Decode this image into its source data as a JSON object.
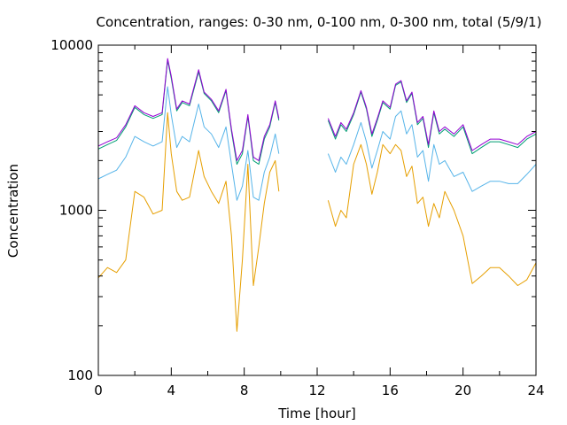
{
  "chart_data": {
    "type": "line",
    "title": "Concentration, ranges: 0-30 nm, 0-100 nm, 0-300 nm, total (5/9/1)",
    "xlabel": "Time [hour]",
    "ylabel": "Concentration",
    "xlim": [
      0,
      24
    ],
    "ylim": [
      100,
      10000
    ],
    "yscale": "log",
    "grid": false,
    "legend": "none",
    "x_ticks": [
      0,
      4,
      8,
      12,
      16,
      20,
      24
    ],
    "x_tick_labels": [
      "0",
      "4",
      "8",
      "12",
      "16",
      "20",
      "24"
    ],
    "y_ticks": [
      100,
      1000,
      10000
    ],
    "y_tick_labels": [
      "100",
      "1000",
      "10000"
    ],
    "series": [
      {
        "color": "#9400d3",
        "x": [
          0,
          0.5,
          1,
          1.5,
          2,
          2.5,
          3,
          3.5,
          3.8,
          4,
          4.3,
          4.6,
          5,
          5.5,
          5.8,
          6.2,
          6.6,
          7,
          7.3,
          7.6,
          7.9,
          8.2,
          8.5,
          8.8,
          9.1,
          9.4,
          9.7,
          9.9,
          null,
          12.6,
          13,
          13.3,
          13.6,
          14,
          14.4,
          14.7,
          15,
          15.3,
          15.6,
          16,
          16.3,
          16.6,
          16.9,
          17.2,
          17.5,
          17.8,
          18.1,
          18.4,
          18.7,
          19,
          19.5,
          20,
          20.5,
          21,
          21.5,
          22,
          22.5,
          23,
          23.5,
          24
        ],
        "y": [
          2450,
          2600,
          2750,
          3300,
          4300,
          3900,
          3700,
          3900,
          8300,
          6500,
          4100,
          4600,
          4400,
          7100,
          5200,
          4700,
          4000,
          5400,
          3100,
          2000,
          2300,
          3800,
          2100,
          2000,
          2800,
          3300,
          4600,
          3600,
          null,
          3600,
          2800,
          3400,
          3100,
          3900,
          5300,
          4200,
          2900,
          3600,
          4600,
          4200,
          5800,
          6100,
          4600,
          5200,
          3400,
          3700,
          2500,
          4000,
          3000,
          3200,
          2900,
          3300,
          2300,
          2500,
          2700,
          2700,
          2600,
          2500,
          2800,
          3000
        ]
      },
      {
        "color": "#009e73",
        "x": [
          0,
          0.5,
          1,
          1.5,
          2,
          2.5,
          3,
          3.5,
          3.8,
          4,
          4.3,
          4.6,
          5,
          5.5,
          5.8,
          6.2,
          6.6,
          7,
          7.3,
          7.6,
          7.9,
          8.2,
          8.5,
          8.8,
          9.1,
          9.4,
          9.7,
          9.9,
          null,
          12.6,
          13,
          13.3,
          13.6,
          14,
          14.4,
          14.7,
          15,
          15.3,
          15.6,
          16,
          16.3,
          16.6,
          16.9,
          17.2,
          17.5,
          17.8,
          18.1,
          18.4,
          18.7,
          19,
          19.5,
          20,
          20.5,
          21,
          21.5,
          22,
          22.5,
          23,
          23.5,
          24
        ],
        "y": [
          2350,
          2500,
          2650,
          3200,
          4200,
          3800,
          3600,
          3800,
          8100,
          6300,
          4000,
          4500,
          4300,
          6900,
          5100,
          4600,
          3900,
          5300,
          3000,
          1900,
          2200,
          3700,
          2000,
          1900,
          2700,
          3200,
          4500,
          3500,
          null,
          3500,
          2700,
          3300,
          3000,
          3800,
          5200,
          4100,
          2800,
          3500,
          4500,
          4100,
          5700,
          6000,
          4500,
          5100,
          3300,
          3600,
          2400,
          3900,
          2900,
          3100,
          2800,
          3200,
          2200,
          2400,
          2600,
          2600,
          2500,
          2400,
          2700,
          2900
        ]
      },
      {
        "color": "#56b4e9",
        "x": [
          0,
          0.5,
          1,
          1.5,
          2,
          2.5,
          3,
          3.5,
          3.8,
          4,
          4.3,
          4.6,
          5,
          5.5,
          5.8,
          6.2,
          6.6,
          7,
          7.3,
          7.6,
          7.9,
          8.2,
          8.5,
          8.8,
          9.1,
          9.4,
          9.7,
          9.9,
          null,
          12.6,
          13,
          13.3,
          13.6,
          14,
          14.4,
          14.7,
          15,
          15.3,
          15.6,
          16,
          16.3,
          16.6,
          16.9,
          17.2,
          17.5,
          17.8,
          18.1,
          18.4,
          18.7,
          19,
          19.5,
          20,
          20.5,
          21,
          21.5,
          22,
          22.5,
          23,
          23.5,
          24
        ],
        "y": [
          1550,
          1650,
          1750,
          2100,
          2800,
          2600,
          2450,
          2600,
          5600,
          3800,
          2400,
          2800,
          2600,
          4400,
          3200,
          2900,
          2400,
          3200,
          1900,
          1150,
          1400,
          2300,
          1200,
          1150,
          1700,
          2100,
          2900,
          2200,
          null,
          2200,
          1700,
          2100,
          1900,
          2500,
          3400,
          2600,
          1800,
          2300,
          3000,
          2700,
          3700,
          4000,
          2900,
          3300,
          2100,
          2300,
          1500,
          2500,
          1900,
          2000,
          1600,
          1700,
          1300,
          1400,
          1500,
          1500,
          1450,
          1450,
          1650,
          1900
        ]
      },
      {
        "color": "#e69f00",
        "x": [
          0,
          0.5,
          1,
          1.5,
          2,
          2.5,
          3,
          3.5,
          3.8,
          4,
          4.3,
          4.6,
          5,
          5.5,
          5.8,
          6.2,
          6.6,
          7,
          7.3,
          7.6,
          7.9,
          8.2,
          8.5,
          8.8,
          9.1,
          9.4,
          9.7,
          9.9,
          null,
          12.6,
          13,
          13.3,
          13.6,
          14,
          14.4,
          14.7,
          15,
          15.3,
          15.6,
          16,
          16.3,
          16.6,
          16.9,
          17.2,
          17.5,
          17.8,
          18.1,
          18.4,
          18.7,
          19,
          19.5,
          20,
          20.5,
          21,
          21.5,
          22,
          22.5,
          23,
          23.5,
          24
        ],
        "y": [
          390,
          450,
          420,
          500,
          1300,
          1200,
          950,
          1000,
          3900,
          2200,
          1300,
          1150,
          1200,
          2300,
          1600,
          1300,
          1100,
          1500,
          700,
          185,
          500,
          1900,
          350,
          600,
          1100,
          1700,
          2000,
          1300,
          null,
          1150,
          800,
          1000,
          900,
          1900,
          2500,
          1900,
          1250,
          1700,
          2500,
          2200,
          2500,
          2300,
          1600,
          1850,
          1100,
          1200,
          800,
          1100,
          900,
          1300,
          1000,
          700,
          360,
          400,
          450,
          450,
          400,
          350,
          380,
          480
        ]
      }
    ]
  }
}
